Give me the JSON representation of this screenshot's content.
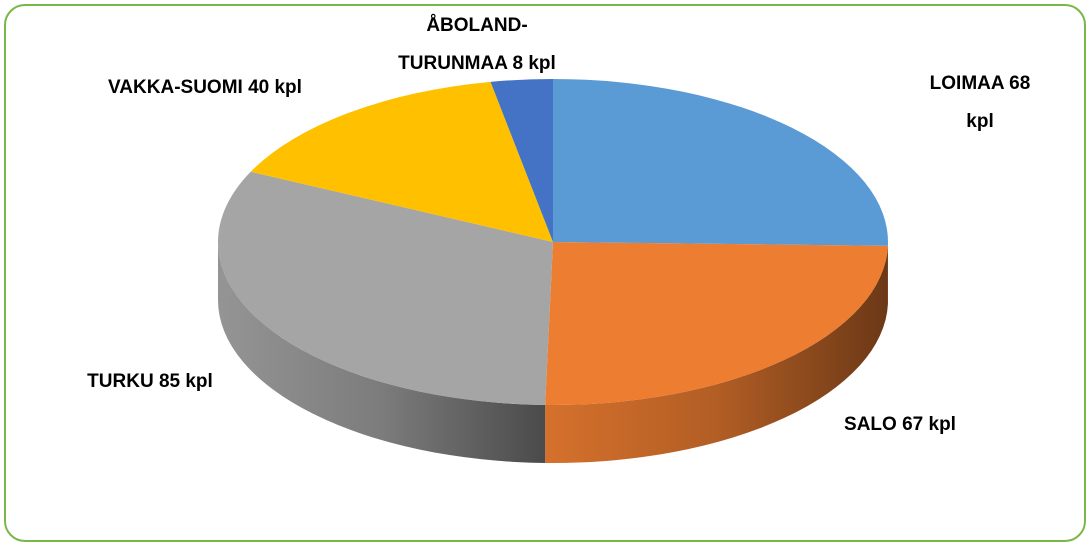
{
  "chart_data": {
    "type": "pie",
    "values": [
      68,
      67,
      85,
      40,
      8
    ],
    "value_labels": [
      "LOIMAA 68 kpl",
      "SALO 67 kpl",
      "TURKU 85 kpl",
      "VAKKA-SUOMI 40 kpl",
      "ÅBOLAND-\nTURUNMAA 8 kpl"
    ],
    "colors": [
      "#5b9bd5",
      "#ed7d31",
      "#a5a5a5",
      "#ffc000",
      "#4472c4"
    ]
  }
}
